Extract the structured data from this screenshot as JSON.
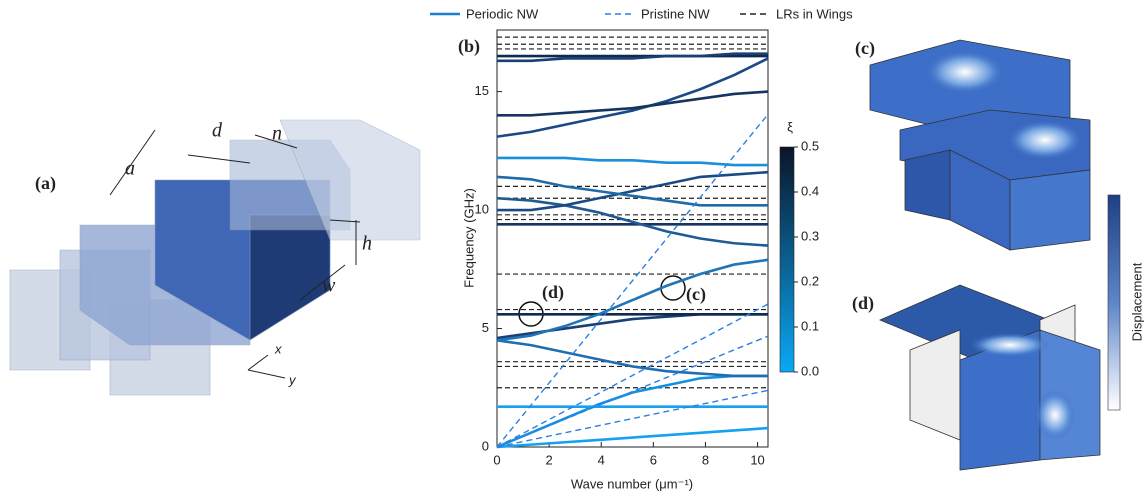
{
  "figure": {
    "panels": [
      "(a)",
      "(b)",
      "(c)",
      "(d)"
    ],
    "dimensions": [
      "a",
      "d",
      "n",
      "h",
      "w"
    ],
    "axes": [
      "x",
      "y"
    ],
    "displacement_label": "Displacement"
  },
  "chart_data": {
    "type": "line",
    "x_label": "Wave number (μm⁻¹)",
    "y_label": "Frequency (GHz)",
    "xlim": [
      0,
      10.4
    ],
    "ylim": [
      0,
      17.6
    ],
    "xticks": [
      0,
      2,
      4,
      6,
      8,
      10
    ],
    "yticks": [
      0,
      5,
      10,
      15
    ],
    "x": [
      0,
      1.3,
      2.6,
      3.9,
      5.2,
      6.5,
      7.8,
      9.1,
      10.4
    ],
    "series": [
      {
        "name": "Periodic NW",
        "color": "#1a7fd0",
        "dash": false,
        "colors": [
          "#15a0f0",
          "#1590e0",
          "#15a0f0",
          "#1f6fb0",
          "#1a3f75",
          "#0f2a50",
          "#1f75b8",
          "#153560",
          "#1f5a95",
          "#1a4a85",
          "#1f6aa8",
          "#1a90dd",
          "#1a4a85",
          "#153560",
          "#0f2a50",
          "#1a3f75"
        ],
        "values": [
          [
            0,
            0.1,
            0.2,
            0.3,
            0.4,
            0.5,
            0.6,
            0.7,
            0.8
          ],
          [
            0,
            0.6,
            1.2,
            1.8,
            2.3,
            2.6,
            2.9,
            3.0,
            3.0
          ],
          [
            1.7,
            1.7,
            1.7,
            1.7,
            1.7,
            1.7,
            1.7,
            1.7,
            1.7
          ],
          [
            4.5,
            4.3,
            4.0,
            3.7,
            3.4,
            3.2,
            3.1,
            3.0,
            3.0
          ],
          [
            4.6,
            4.8,
            5.0,
            5.2,
            5.4,
            5.5,
            5.6,
            5.6,
            5.6
          ],
          [
            5.6,
            5.6,
            5.6,
            5.6,
            5.6,
            5.6,
            5.6,
            5.6,
            5.6
          ],
          [
            4.5,
            4.7,
            5.1,
            5.6,
            6.2,
            6.8,
            7.3,
            7.7,
            7.9
          ],
          [
            9.4,
            9.4,
            9.4,
            9.4,
            9.4,
            9.4,
            9.4,
            9.4,
            9.4
          ],
          [
            10.5,
            10.4,
            10.2,
            9.9,
            9.5,
            9.1,
            8.8,
            8.6,
            8.5
          ],
          [
            10.0,
            10.0,
            10.2,
            10.5,
            10.8,
            11.1,
            11.4,
            11.5,
            11.6
          ],
          [
            11.4,
            11.3,
            11.0,
            10.8,
            10.6,
            10.4,
            10.2,
            10.2,
            10.2
          ],
          [
            12.2,
            12.2,
            12.2,
            12.1,
            12.1,
            12.0,
            12.0,
            11.9,
            11.9
          ],
          [
            13.1,
            13.3,
            13.6,
            13.9,
            14.2,
            14.6,
            15.1,
            15.7,
            16.4
          ],
          [
            14.0,
            14.0,
            14.1,
            14.2,
            14.3,
            14.5,
            14.7,
            14.9,
            15.0
          ],
          [
            16.5,
            16.5,
            16.5,
            16.5,
            16.5,
            16.5,
            16.5,
            16.5,
            16.5
          ],
          [
            16.3,
            16.3,
            16.4,
            16.4,
            16.4,
            16.5,
            16.5,
            16.6,
            16.6
          ]
        ]
      },
      {
        "name": "Pristine NW",
        "color": "#2a80e0",
        "dash": true,
        "values": [
          [
            0,
            1.76,
            3.51,
            5.27,
            7.02,
            8.78,
            10.53,
            12.29,
            14.04
          ],
          [
            0,
            0.75,
            1.51,
            2.26,
            3.02,
            3.77,
            4.52,
            5.28,
            6.03
          ],
          [
            0,
            0.59,
            1.17,
            1.76,
            2.34,
            2.93,
            3.51,
            4.1,
            4.68
          ],
          [
            0,
            0.3,
            0.6,
            0.9,
            1.2,
            1.5,
            1.79,
            2.09,
            2.39
          ]
        ]
      }
    ],
    "wing_resonances": {
      "name": "LRs in Wings",
      "color": "#222222",
      "levels": [
        2.5,
        3.4,
        3.6,
        5.8,
        7.3,
        9.4,
        9.6,
        9.8,
        10.5,
        11.0,
        16.8,
        17.0,
        17.3
      ]
    },
    "annotations": [
      "(d)",
      "(c)"
    ],
    "colorbar": {
      "label": "ξ",
      "colors": [
        "#0aa8f5",
        "#0a1528"
      ],
      "lim": [
        0,
        0.5
      ],
      "ticks": [
        {
          "value": 0,
          "label": "0.0"
        },
        {
          "value": 0.1,
          "label": "0.1"
        },
        {
          "value": 0.2,
          "label": "0.2"
        },
        {
          "value": 0.3,
          "label": "0.3"
        },
        {
          "value": 0.4,
          "label": "0.4"
        },
        {
          "value": 0.5,
          "label": "0.5"
        }
      ]
    }
  }
}
